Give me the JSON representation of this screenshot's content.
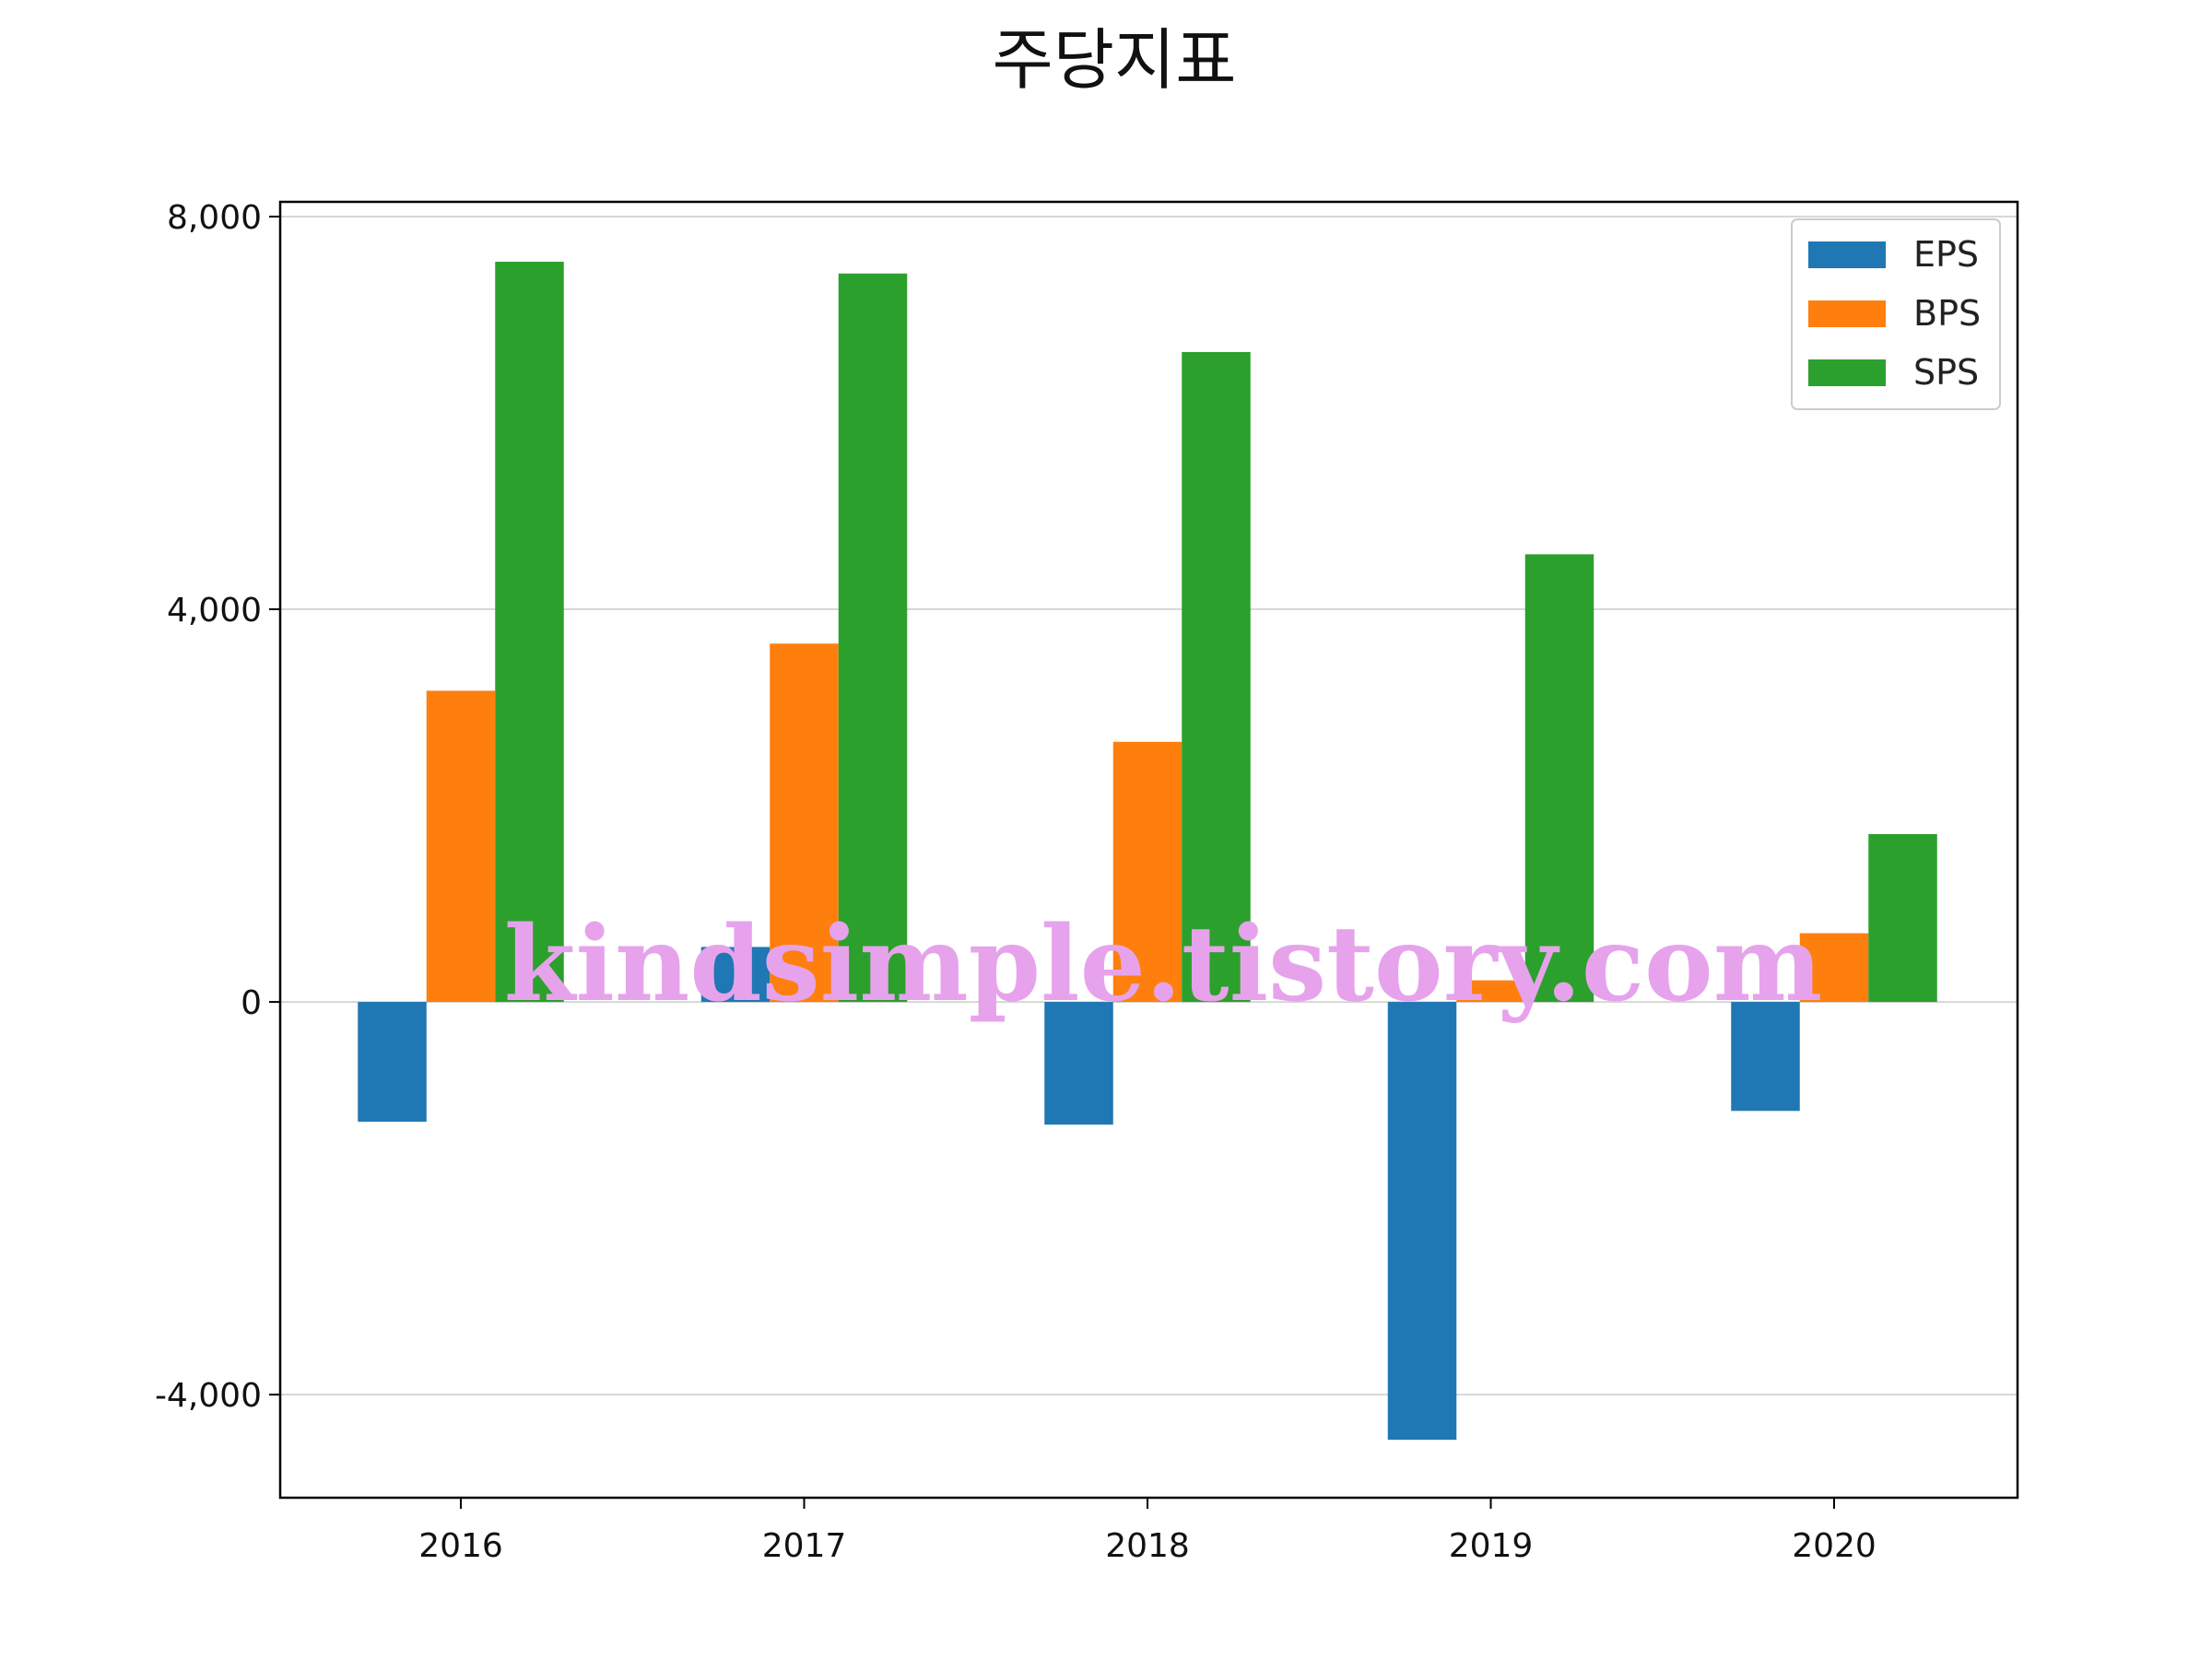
{
  "chart_data": {
    "type": "bar",
    "title": "주당지표",
    "xlabel": "",
    "ylabel": "",
    "categories": [
      "2016",
      "2017",
      "2018",
      "2019",
      "2020"
    ],
    "series": [
      {
        "name": "EPS",
        "color": "#1f77b4",
        "values": [
          -1220,
          560,
          -1250,
          -4460,
          -1110
        ]
      },
      {
        "name": "BPS",
        "color": "#ff7f0e",
        "values": [
          3170,
          3650,
          2650,
          220,
          700
        ]
      },
      {
        "name": "SPS",
        "color": "#2ca02c",
        "values": [
          7540,
          7420,
          6620,
          4560,
          1710
        ]
      }
    ],
    "ylim": [
      -5050,
      8150
    ],
    "yticks": [
      -4000,
      0,
      4000,
      8000
    ],
    "ytick_labels": [
      "-4,000",
      "0",
      "4,000",
      "8,000"
    ],
    "grid": "y",
    "legend": "top-right",
    "watermark": "kindsimple.tistory.com"
  }
}
